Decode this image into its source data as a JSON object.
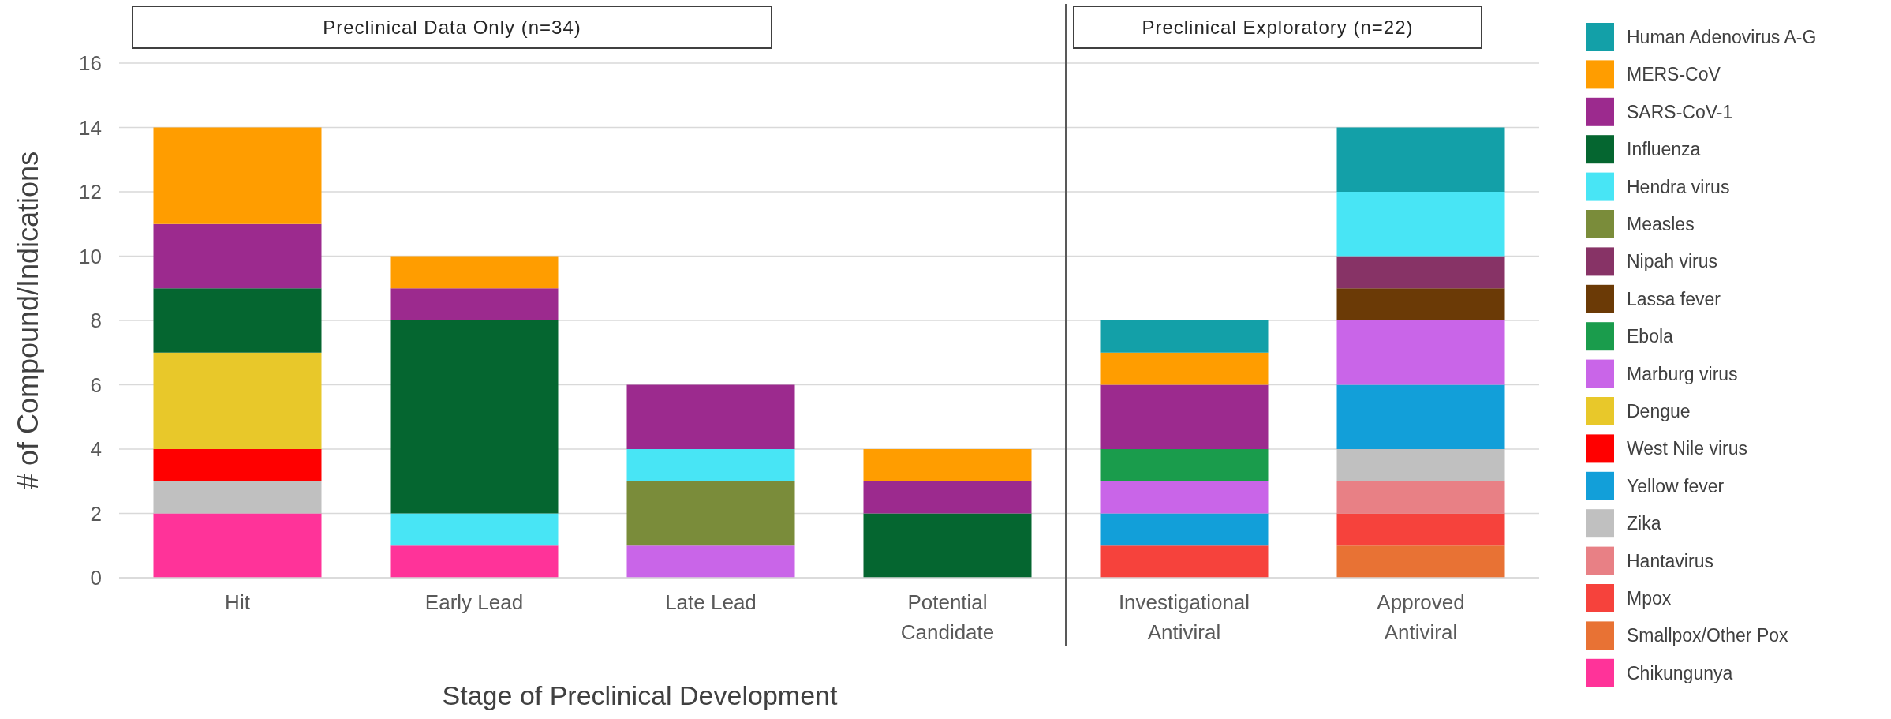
{
  "chart_data": [
    {
      "type": "bar",
      "stacked": true,
      "title": "Preclinical Data Only (n=34)",
      "xlabel": "Stage of Preclinical Development",
      "ylabel": "# of Compound/Indications",
      "categories": [
        "Hit",
        "Early Lead",
        "Late Lead",
        "Potential Candidate"
      ],
      "ylim": [
        0,
        16
      ],
      "yticks": [
        0,
        2,
        4,
        6,
        8,
        10,
        12,
        14,
        16
      ],
      "grid": "y",
      "legend": "right",
      "series": [
        {
          "name": "Chikungunya",
          "color": "#ff3399",
          "values": [
            2,
            1,
            0,
            0
          ]
        },
        {
          "name": "Zika",
          "color": "#c0c0c0",
          "values": [
            1,
            0,
            0,
            0
          ]
        },
        {
          "name": "West Nile virus",
          "color": "#ff0000",
          "values": [
            1,
            0,
            0,
            0
          ]
        },
        {
          "name": "Dengue",
          "color": "#e8c82a",
          "values": [
            3,
            0,
            0,
            0
          ]
        },
        {
          "name": "Marburg virus",
          "color": "#c965e8",
          "values": [
            0,
            0,
            1,
            0
          ]
        },
        {
          "name": "Measles",
          "color": "#7a8c3a",
          "values": [
            0,
            0,
            2,
            0
          ]
        },
        {
          "name": "Hendra virus",
          "color": "#48e5f5",
          "values": [
            0,
            1,
            1,
            0
          ]
        },
        {
          "name": "Influenza",
          "color": "#056630",
          "values": [
            2,
            6,
            0,
            2
          ]
        },
        {
          "name": "SARS-CoV-1",
          "color": "#9c2a8e",
          "values": [
            2,
            1,
            2,
            1
          ]
        },
        {
          "name": "MERS-CoV",
          "color": "#ff9d00",
          "values": [
            3,
            1,
            0,
            1
          ]
        }
      ]
    },
    {
      "type": "bar",
      "stacked": true,
      "title": "Preclinical Exploratory (n=22)",
      "categories": [
        "Investigational Antiviral",
        "Approved Antiviral"
      ],
      "ylim": [
        0,
        16
      ],
      "yticks": [
        0,
        2,
        4,
        6,
        8,
        10,
        12,
        14,
        16
      ],
      "grid": "y",
      "tick_labels": "x",
      "legend": "right",
      "series": [
        {
          "name": "Smallpox/Other Pox",
          "color": "#e87234",
          "values": [
            0,
            1
          ]
        },
        {
          "name": "Mpox",
          "color": "#f6423c",
          "values": [
            1,
            1
          ]
        },
        {
          "name": "Hantavirus",
          "color": "#e88085",
          "values": [
            0,
            1
          ]
        },
        {
          "name": "Zika",
          "color": "#c0c0c0",
          "values": [
            0,
            1
          ]
        },
        {
          "name": "Yellow fever",
          "color": "#129fd9",
          "values": [
            1,
            2
          ]
        },
        {
          "name": "Marburg virus",
          "color": "#c965e8",
          "values": [
            1,
            2
          ]
        },
        {
          "name": "Ebola",
          "color": "#1a9c4c",
          "values": [
            1,
            0
          ]
        },
        {
          "name": "Lassa fever",
          "color": "#6b3a06",
          "values": [
            0,
            1
          ]
        },
        {
          "name": "Nipah virus",
          "color": "#873366",
          "values": [
            0,
            1
          ]
        },
        {
          "name": "Hendra virus",
          "color": "#48e5f5",
          "values": [
            0,
            2
          ]
        },
        {
          "name": "SARS-CoV-1",
          "color": "#9c2a8e",
          "values": [
            2,
            0
          ]
        },
        {
          "name": "MERS-CoV",
          "color": "#ff9d00",
          "values": [
            1,
            0
          ]
        },
        {
          "name": "Human Adenovirus A-G",
          "color": "#13a0a8",
          "values": [
            1,
            2
          ]
        }
      ]
    }
  ]
}
